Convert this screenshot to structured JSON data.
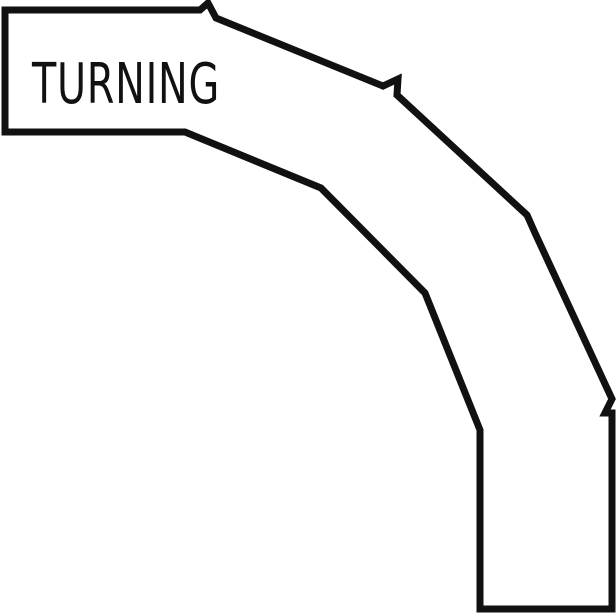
{
  "label": "TURNING",
  "colors": {
    "stroke": "#111111",
    "fill": "#ffffff",
    "background": "#ffffff"
  },
  "icon": "curved-arrow-outline"
}
